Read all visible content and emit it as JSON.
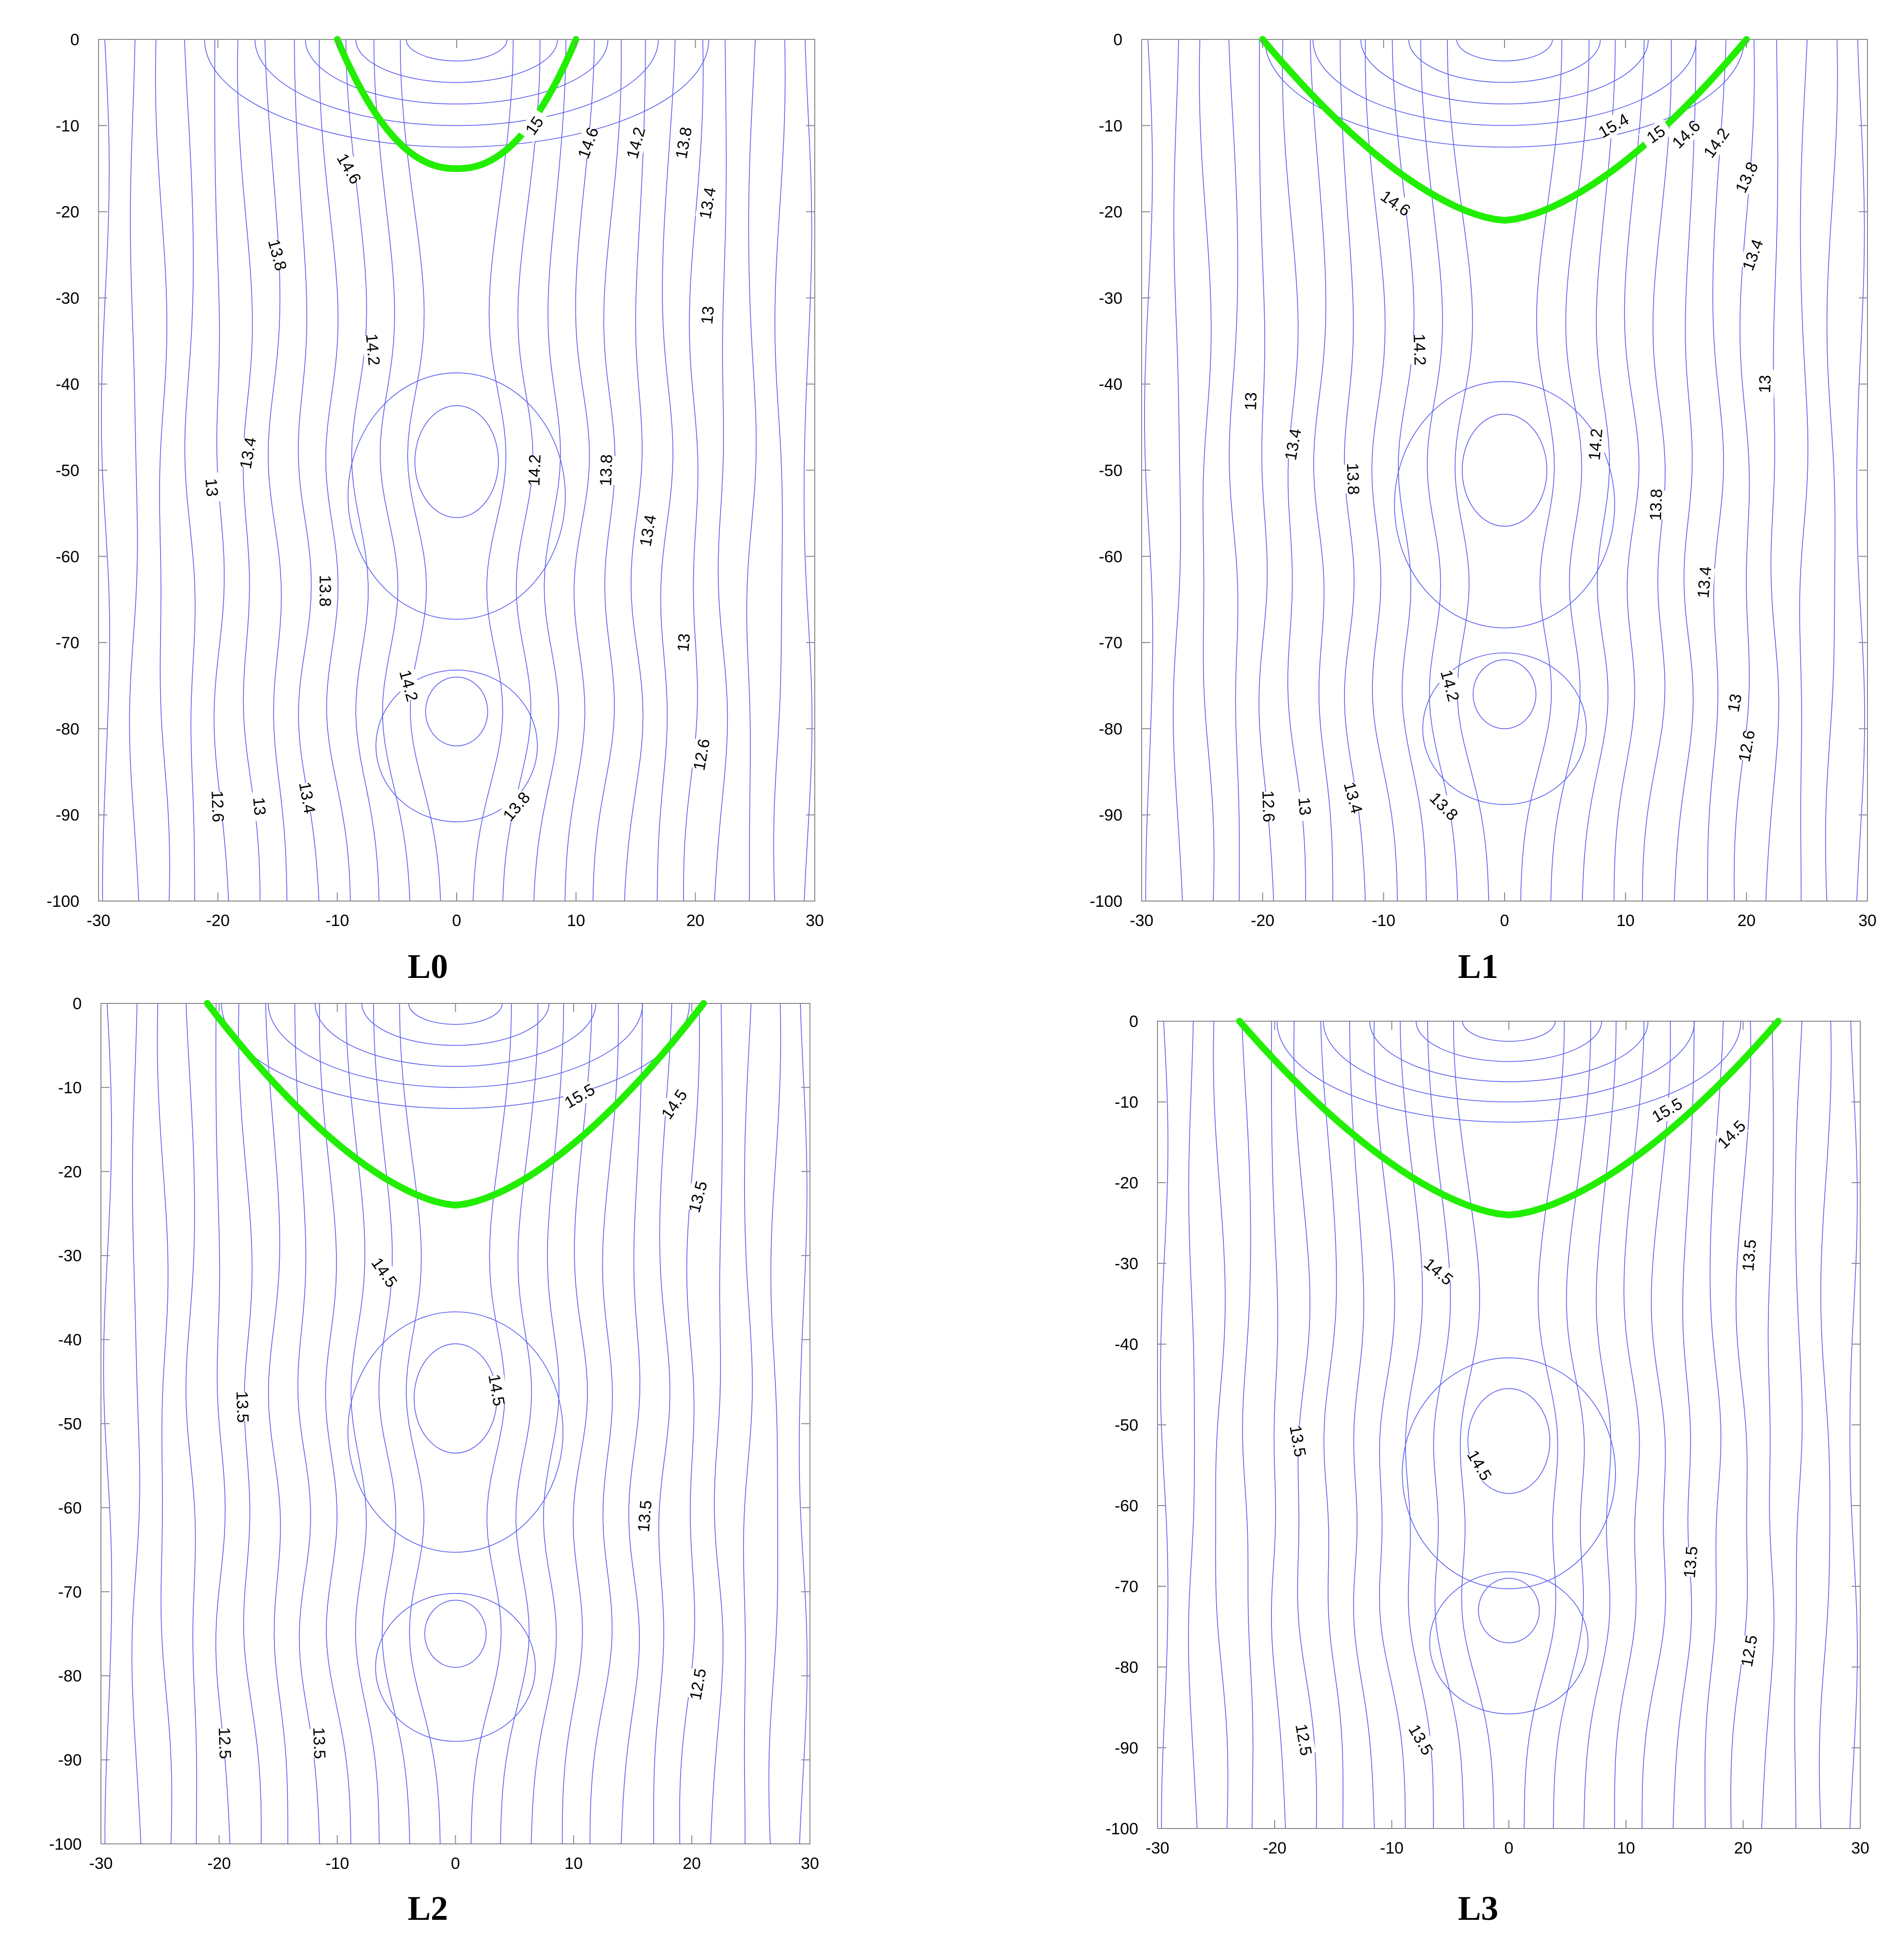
{
  "figure": {
    "colors": {
      "contour": "#5b5bf0",
      "highlight": "#22ee00",
      "axis": "#8a8a8a",
      "text": "#000000"
    },
    "panels": [
      "L0",
      "L1",
      "L2",
      "L3"
    ]
  },
  "chart_data": [
    {
      "type": "contour",
      "title": "L0",
      "xlim": [
        -30,
        30
      ],
      "ylim": [
        -100,
        0
      ],
      "xticks": [
        "-30",
        "-20",
        "-10",
        "0",
        "10",
        "20",
        "30"
      ],
      "yticks": [
        "0",
        "-10",
        "-20",
        "-30",
        "-40",
        "-50",
        "-60",
        "-70",
        "-80",
        "-90",
        "-100"
      ],
      "highlight_level": 15,
      "field": {
        "peak_x": 0,
        "peak_y": 0,
        "peak_value": 16.6,
        "basin_scale": 0.32,
        "lobes": [
          {
            "x": 0,
            "y": -49
          },
          {
            "x": 0,
            "y": -78
          }
        ]
      },
      "contour_labels": [
        {
          "text": "15",
          "x": 6.5,
          "y": -10,
          "angle": -55
        },
        {
          "text": "14.6",
          "x": -9,
          "y": -15,
          "angle": 60
        },
        {
          "text": "14.6",
          "x": 11,
          "y": -12,
          "angle": -70
        },
        {
          "text": "14.2",
          "x": 15,
          "y": -12,
          "angle": -75
        },
        {
          "text": "13.8",
          "x": 19,
          "y": -12,
          "angle": -80
        },
        {
          "text": "13.4",
          "x": 21,
          "y": -19,
          "angle": -80
        },
        {
          "text": "13.8",
          "x": -15,
          "y": -25,
          "angle": 75
        },
        {
          "text": "14.2",
          "x": -7,
          "y": -36,
          "angle": 85
        },
        {
          "text": "13",
          "x": 21,
          "y": -32,
          "angle": -85
        },
        {
          "text": "13.4",
          "x": -17.5,
          "y": -48,
          "angle": -80
        },
        {
          "text": "13",
          "x": -20.5,
          "y": -52,
          "angle": 85
        },
        {
          "text": "14.2",
          "x": 6.5,
          "y": -50,
          "angle": -88
        },
        {
          "text": "13.8",
          "x": 12.5,
          "y": -50,
          "angle": -88
        },
        {
          "text": "13.4",
          "x": 16,
          "y": -57,
          "angle": -80
        },
        {
          "text": "13.8",
          "x": -11,
          "y": -64,
          "angle": 90
        },
        {
          "text": "13",
          "x": 19,
          "y": -70,
          "angle": -85
        },
        {
          "text": "14.2",
          "x": -4,
          "y": -75,
          "angle": 75
        },
        {
          "text": "12.6",
          "x": 20.5,
          "y": -83,
          "angle": -80
        },
        {
          "text": "13.4",
          "x": -12.5,
          "y": -88,
          "angle": 80
        },
        {
          "text": "12.6",
          "x": -20,
          "y": -89,
          "angle": 88
        },
        {
          "text": "13",
          "x": -16.5,
          "y": -89,
          "angle": 85
        },
        {
          "text": "13.8",
          "x": 5,
          "y": -89,
          "angle": -50
        }
      ]
    },
    {
      "type": "contour",
      "title": "L1",
      "xlim": [
        -30,
        30
      ],
      "ylim": [
        -100,
        0
      ],
      "xticks": [
        "-30",
        "-20",
        "-10",
        "0",
        "10",
        "20",
        "30"
      ],
      "yticks": [
        "0",
        "-10",
        "-20",
        "-30",
        "-40",
        "-50",
        "-60",
        "-70",
        "-80",
        "-90",
        "-100"
      ],
      "highlight_level": 15,
      "field": {
        "peak_x": 0,
        "peak_y": 0,
        "peak_value": 16.4,
        "basin_scale": 0.3,
        "lobes": [
          {
            "x": 0,
            "y": -50
          },
          {
            "x": 0,
            "y": -76
          }
        ]
      },
      "contour_labels": [
        {
          "text": "15.4",
          "x": 9,
          "y": -10,
          "angle": -30
        },
        {
          "text": "15",
          "x": 12.5,
          "y": -11,
          "angle": -35
        },
        {
          "text": "14.6",
          "x": 15,
          "y": -11,
          "angle": -45
        },
        {
          "text": "14.2",
          "x": 17.5,
          "y": -12,
          "angle": -55
        },
        {
          "text": "13.8",
          "x": 20,
          "y": -16,
          "angle": -65
        },
        {
          "text": "14.6",
          "x": -9,
          "y": -19,
          "angle": 35
        },
        {
          "text": "13.4",
          "x": 20.5,
          "y": -25,
          "angle": -70
        },
        {
          "text": "14.2",
          "x": -7,
          "y": -36,
          "angle": 88
        },
        {
          "text": "13",
          "x": -21,
          "y": -42,
          "angle": -88
        },
        {
          "text": "13",
          "x": 21.5,
          "y": -40,
          "angle": -88
        },
        {
          "text": "13.4",
          "x": -17.5,
          "y": -47,
          "angle": -80
        },
        {
          "text": "13.8",
          "x": -12.5,
          "y": -51,
          "angle": 88
        },
        {
          "text": "14.2",
          "x": 7.5,
          "y": -47,
          "angle": -85
        },
        {
          "text": "13.8",
          "x": 12.5,
          "y": -54,
          "angle": -88
        },
        {
          "text": "13.4",
          "x": 16.5,
          "y": -63,
          "angle": -85
        },
        {
          "text": "14.2",
          "x": -4.5,
          "y": -75,
          "angle": 75
        },
        {
          "text": "13",
          "x": 19,
          "y": -77,
          "angle": -80
        },
        {
          "text": "12.6",
          "x": 20,
          "y": -82,
          "angle": -80
        },
        {
          "text": "12.6",
          "x": -19.5,
          "y": -89,
          "angle": 88
        },
        {
          "text": "13",
          "x": -16.5,
          "y": -89,
          "angle": 85
        },
        {
          "text": "13.4",
          "x": -12.5,
          "y": -88,
          "angle": 75
        },
        {
          "text": "13.8",
          "x": -5,
          "y": -89,
          "angle": 45
        }
      ]
    },
    {
      "type": "contour",
      "title": "L2",
      "xlim": [
        -30,
        30
      ],
      "ylim": [
        -100,
        0
      ],
      "xticks": [
        "-30",
        "-20",
        "-10",
        "0",
        "10",
        "20",
        "30"
      ],
      "yticks": [
        "0",
        "-10",
        "-20",
        "-30",
        "-40",
        "-50",
        "-60",
        "-70",
        "-80",
        "-90",
        "-100"
      ],
      "highlight_level": 15,
      "field": {
        "peak_x": 0,
        "peak_y": 0,
        "peak_value": 17.2,
        "basin_scale": 0.3,
        "lobes": [
          {
            "x": 0,
            "y": -47
          },
          {
            "x": 0,
            "y": -75
          }
        ]
      },
      "contour_labels": [
        {
          "text": "15.5",
          "x": 10.5,
          "y": -11,
          "angle": -30
        },
        {
          "text": "14.5",
          "x": 18.5,
          "y": -12,
          "angle": -55
        },
        {
          "text": "13.5",
          "x": 20.5,
          "y": -23,
          "angle": -75
        },
        {
          "text": "14.5",
          "x": -6,
          "y": -32,
          "angle": 55
        },
        {
          "text": "14.5",
          "x": 3.5,
          "y": -46,
          "angle": 80
        },
        {
          "text": "13.5",
          "x": -18,
          "y": -48,
          "angle": 88
        },
        {
          "text": "13.5",
          "x": 16,
          "y": -61,
          "angle": -85
        },
        {
          "text": "12.5",
          "x": 20.5,
          "y": -81,
          "angle": -80
        },
        {
          "text": "12.5",
          "x": -19.5,
          "y": -88,
          "angle": 88
        },
        {
          "text": "13.5",
          "x": -11.5,
          "y": -88,
          "angle": 88
        }
      ]
    },
    {
      "type": "contour",
      "title": "L3",
      "xlim": [
        -30,
        30
      ],
      "ylim": [
        -100,
        0
      ],
      "xticks": [
        "-30",
        "-20",
        "-10",
        "0",
        "10",
        "20",
        "30"
      ],
      "yticks": [
        "0",
        "-10",
        "-20",
        "-30",
        "-40",
        "-50",
        "-60",
        "-70",
        "-80",
        "-90",
        "-100"
      ],
      "highlight_level": 15,
      "field": {
        "peak_x": 0,
        "peak_y": 0,
        "peak_value": 17.2,
        "basin_scale": 0.3,
        "lobes": [
          {
            "x": 0,
            "y": -52
          },
          {
            "x": 0,
            "y": -73
          }
        ]
      },
      "contour_labels": [
        {
          "text": "15.5",
          "x": 13.5,
          "y": -11,
          "angle": -30
        },
        {
          "text": "14.5",
          "x": 19,
          "y": -14,
          "angle": -45
        },
        {
          "text": "14.5",
          "x": -6,
          "y": -31,
          "angle": 40
        },
        {
          "text": "13.5",
          "x": 20.5,
          "y": -29,
          "angle": -85
        },
        {
          "text": "13.5",
          "x": -18,
          "y": -52,
          "angle": 80
        },
        {
          "text": "14.5",
          "x": -2.5,
          "y": -55,
          "angle": 60
        },
        {
          "text": "13.5",
          "x": 15.5,
          "y": -67,
          "angle": -85
        },
        {
          "text": "12.5",
          "x": 20.5,
          "y": -78,
          "angle": -80
        },
        {
          "text": "12.5",
          "x": -17.5,
          "y": -89,
          "angle": 80
        },
        {
          "text": "13.5",
          "x": -7.5,
          "y": -89,
          "angle": 60
        }
      ]
    }
  ]
}
